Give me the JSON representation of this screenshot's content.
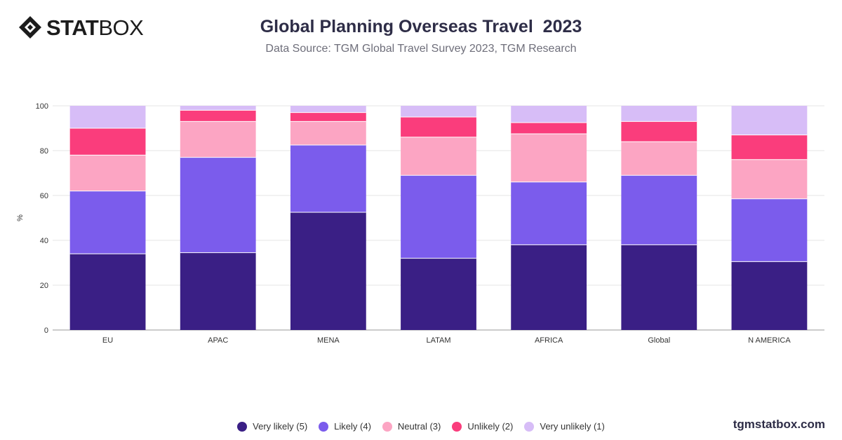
{
  "header": {
    "logo_bold": "STAT",
    "logo_light": "BOX",
    "title": "Global Planning Overseas Travel  2023",
    "subtitle": "Data Source: TGM Global Travel Survey 2023, TGM Research"
  },
  "footer": {
    "site": "tgmstatbox.com"
  },
  "chart_data": {
    "type": "bar",
    "stacked": true,
    "ylabel": "%",
    "ylim": [
      0,
      100
    ],
    "yticks": [
      0,
      20,
      40,
      60,
      80,
      100
    ],
    "grid": true,
    "legend_position": "bottom",
    "categories": [
      "EU",
      "APAC",
      "MENA",
      "LATAM",
      "AFRICA",
      "Global",
      "N AMERICA"
    ],
    "series": [
      {
        "name": "Very likely (5)",
        "color": "#3a1f85",
        "values": [
          34,
          34.5,
          52.5,
          32,
          38,
          38,
          30.5
        ]
      },
      {
        "name": "Likely (4)",
        "color": "#7b5cec",
        "values": [
          28,
          42.5,
          30,
          37,
          28,
          31,
          28
        ]
      },
      {
        "name": "Neutral (3)",
        "color": "#fca5c3",
        "values": [
          16,
          16,
          10.5,
          17,
          21.5,
          15,
          17.5
        ]
      },
      {
        "name": "Unlikely (2)",
        "color": "#fa3d7c",
        "values": [
          12,
          5,
          4,
          9,
          5,
          9,
          11
        ]
      },
      {
        "name": "Very unlikely (1)",
        "color": "#d7bdf7",
        "values": [
          10,
          2,
          3,
          5,
          7.5,
          7,
          13
        ]
      }
    ]
  }
}
